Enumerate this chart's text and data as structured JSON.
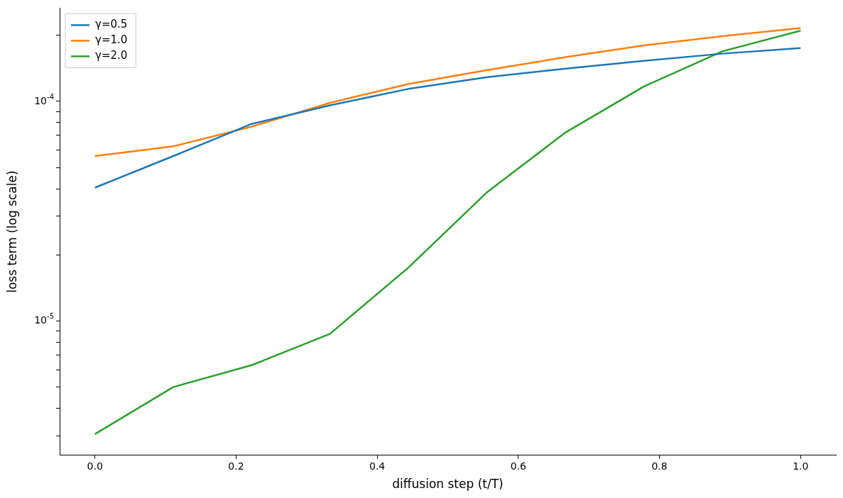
{
  "chart_data": {
    "type": "line",
    "xlabel": "diffusion step (t/T)",
    "ylabel": "loss term (log scale)",
    "x": [
      0,
      0.111,
      0.222,
      0.333,
      0.444,
      0.556,
      0.667,
      0.778,
      0.889,
      1
    ],
    "series": [
      {
        "name": "γ=0.5",
        "color": "#1f77b4",
        "values": [
          4.05e-05,
          5.64e-05,
          7.9e-05,
          9.6e-05,
          0.000114,
          0.000129,
          0.000141,
          0.000153,
          0.000165,
          0.000175
        ]
      },
      {
        "name": "γ=1.0",
        "color": "#ff7f0e",
        "values": [
          5.64e-05,
          6.25e-05,
          7.67e-05,
          9.85e-05,
          0.00012,
          0.000139,
          0.000159,
          0.00018,
          0.000198,
          0.000216
        ]
      },
      {
        "name": "γ=2.0",
        "color": "#2ca02c",
        "values": [
          3.06e-06,
          5.01e-06,
          6.3e-06,
          8.75e-06,
          1.75e-05,
          3.87e-05,
          7.23e-05,
          0.000117,
          0.000169,
          0.00021
        ]
      }
    ],
    "xlim": [
      -0.05,
      1.05
    ],
    "xticks": [
      {
        "value": 0,
        "label": "0.0"
      },
      {
        "value": 0.2,
        "label": "0.2"
      },
      {
        "value": 0.4,
        "label": "0.4"
      },
      {
        "value": 0.6,
        "label": "0.6"
      },
      {
        "value": 0.8,
        "label": "0.8"
      },
      {
        "value": 1,
        "label": "1.0"
      }
    ],
    "ylim": [
      2.45e-06,
      0.000266
    ],
    "yticks": [
      {
        "value": 3e-06,
        "label": null
      },
      {
        "value": 4e-06,
        "label": null
      },
      {
        "value": 5e-06,
        "label": null
      },
      {
        "value": 6e-06,
        "label": null
      },
      {
        "value": 7e-06,
        "label": null
      },
      {
        "value": 8e-06,
        "label": null
      },
      {
        "value": 9e-06,
        "label": null
      },
      {
        "value": 1e-05,
        "label": "10$^{-5}$"
      },
      {
        "value": 2e-05,
        "label": null
      },
      {
        "value": 3e-05,
        "label": null
      },
      {
        "value": 4e-05,
        "label": null
      },
      {
        "value": 5e-05,
        "label": null
      },
      {
        "value": 6e-05,
        "label": null
      },
      {
        "value": 7e-05,
        "label": null
      },
      {
        "value": 8e-05,
        "label": null
      },
      {
        "value": 9e-05,
        "label": null
      },
      {
        "value": 0.0001,
        "label": "10$^{-4}$"
      },
      {
        "value": 0.0002,
        "label": null
      }
    ],
    "log": "y",
    "grid": false,
    "legend": "top left",
    "marker": "none",
    "line_style": "solid"
  }
}
